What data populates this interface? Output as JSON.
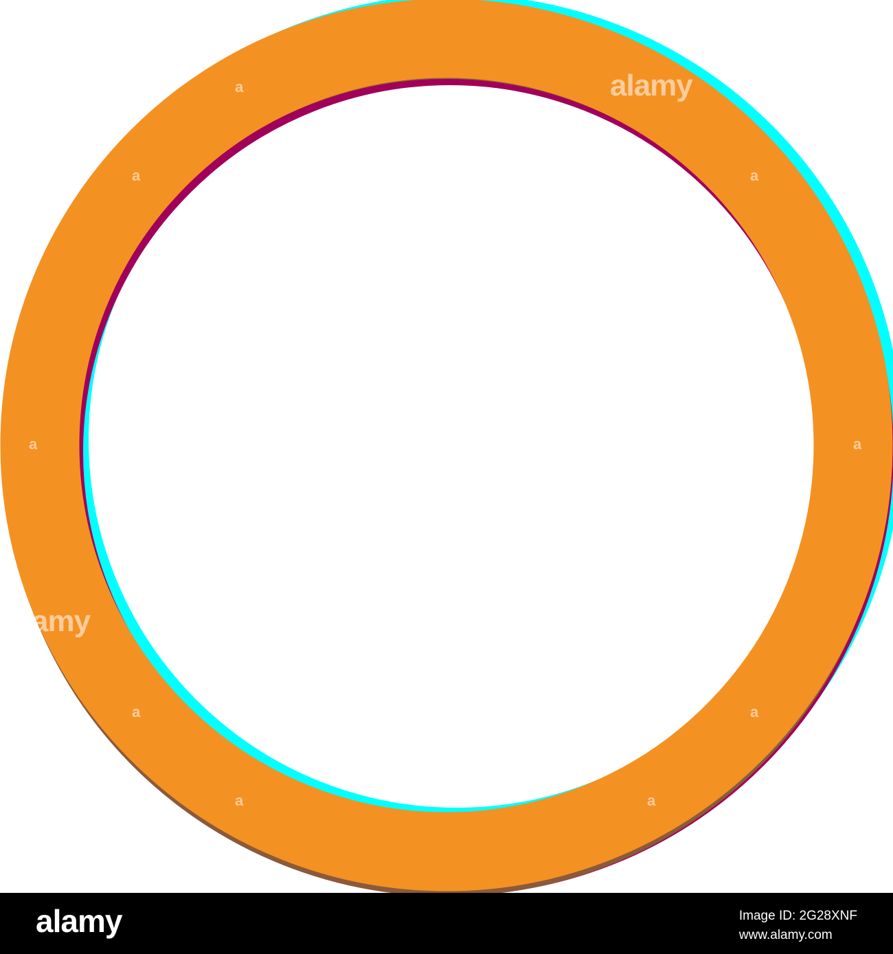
{
  "artwork": {
    "description_colors": {
      "background": "#ffffff",
      "ring": "#f49123",
      "shadow_cyan": "#00ffff",
      "shadow_magenta": "#a0005a",
      "shadow_brown": "#8a5a3a"
    }
  },
  "watermark": {
    "main": "alamy",
    "partial": "amy",
    "letter": "a"
  },
  "footer": {
    "logo": "alamy",
    "image_id": "Image ID: 2G28XNF",
    "site": "www.alamy.com"
  }
}
